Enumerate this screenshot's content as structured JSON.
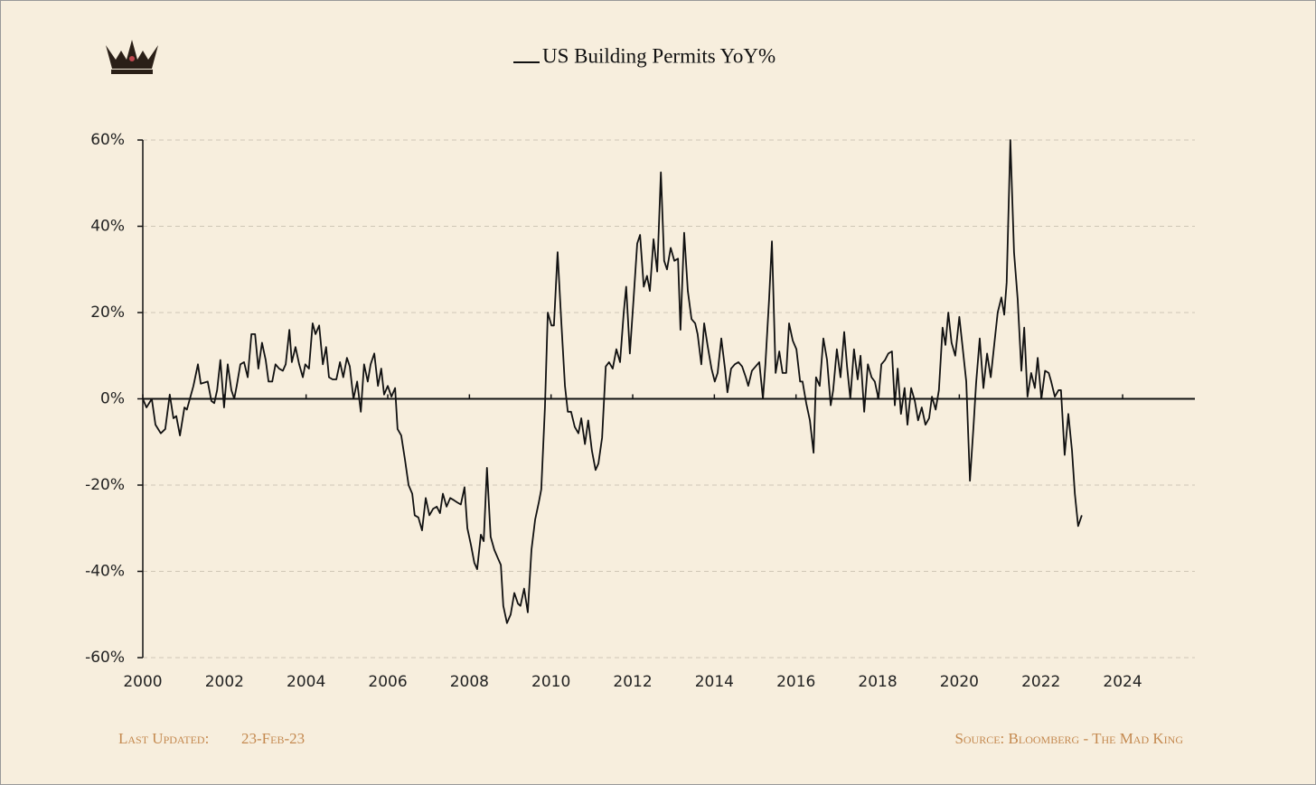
{
  "chart_data": {
    "type": "line",
    "title": "US Building Permits YoY%",
    "footer_left_label": "Last Updated:",
    "footer_left_date": "23-Feb-23",
    "footer_right": "Source: Bloomberg - The Mad King",
    "color": "#111111",
    "grid": true,
    "xlim": [
      2000,
      2025.77
    ],
    "xticks": [
      2000,
      2002,
      2004,
      2006,
      2008,
      2010,
      2012,
      2014,
      2016,
      2018,
      2020,
      2022,
      2024
    ],
    "ylim": [
      -60,
      60
    ],
    "yticks": [
      {
        "value": -60,
        "label": "-60%"
      },
      {
        "value": -40,
        "label": "-40%"
      },
      {
        "value": -20,
        "label": "-20%"
      },
      {
        "value": 0,
        "label": "0%"
      },
      {
        "value": 20,
        "label": "20%"
      },
      {
        "value": 40,
        "label": "40%"
      },
      {
        "value": 60,
        "label": "60%"
      }
    ],
    "x": [
      2000.0,
      2000.09,
      2000.22,
      2000.31,
      2000.44,
      2000.55,
      2000.66,
      2000.75,
      2000.82,
      2000.91,
      2001.02,
      2001.08,
      2001.24,
      2001.35,
      2001.42,
      2001.59,
      2001.68,
      2001.75,
      2001.82,
      2001.9,
      2001.99,
      2002.08,
      2002.17,
      2002.24,
      2002.3,
      2002.39,
      2002.48,
      2002.57,
      2002.66,
      2002.75,
      2002.83,
      2002.92,
      2003.01,
      2003.08,
      2003.17,
      2003.25,
      2003.34,
      2003.43,
      2003.5,
      2003.59,
      2003.65,
      2003.74,
      2003.83,
      2003.92,
      2003.98,
      2004.07,
      2004.16,
      2004.23,
      2004.32,
      2004.41,
      2004.49,
      2004.56,
      2004.65,
      2004.74,
      2004.83,
      2004.91,
      2005.0,
      2005.07,
      2005.16,
      2005.25,
      2005.34,
      2005.42,
      2005.51,
      2005.58,
      2005.67,
      2005.76,
      2005.84,
      2005.91,
      2006.0,
      2006.09,
      2006.18,
      2006.24,
      2006.33,
      2006.42,
      2006.51,
      2006.6,
      2006.66,
      2006.75,
      2006.84,
      2006.93,
      2007.02,
      2007.11,
      2007.2,
      2007.28,
      2007.35,
      2007.44,
      2007.53,
      2007.62,
      2007.7,
      2007.79,
      2007.88,
      2007.95,
      2008.04,
      2008.12,
      2008.19,
      2008.28,
      2008.35,
      2008.43,
      2008.52,
      2008.61,
      2008.7,
      2008.77,
      2008.83,
      2008.92,
      2009.01,
      2009.1,
      2009.19,
      2009.25,
      2009.34,
      2009.43,
      2009.52,
      2009.61,
      2009.7,
      2009.76,
      2009.85,
      2009.92,
      2010.01,
      2010.07,
      2010.16,
      2010.25,
      2010.34,
      2010.41,
      2010.49,
      2010.58,
      2010.67,
      2010.74,
      2010.83,
      2010.91,
      2011.0,
      2011.09,
      2011.16,
      2011.25,
      2011.34,
      2011.42,
      2011.51,
      2011.6,
      2011.69,
      2011.78,
      2011.84,
      2011.93,
      2012.02,
      2012.11,
      2012.18,
      2012.27,
      2012.35,
      2012.42,
      2012.51,
      2012.6,
      2012.69,
      2012.77,
      2012.84,
      2012.93,
      2013.02,
      2013.11,
      2013.17,
      2013.26,
      2013.35,
      2013.44,
      2013.53,
      2013.59,
      2013.68,
      2013.75,
      2013.84,
      2013.93,
      2014.01,
      2014.08,
      2014.17,
      2014.26,
      2014.32,
      2014.41,
      2014.5,
      2014.59,
      2014.68,
      2014.77,
      2014.83,
      2014.92,
      2015.01,
      2015.1,
      2015.19,
      2015.25,
      2015.34,
      2015.41,
      2015.5,
      2015.59,
      2015.67,
      2015.76,
      2015.83,
      2015.92,
      2016.01,
      2016.1,
      2016.16,
      2016.25,
      2016.34,
      2016.43,
      2016.49,
      2016.58,
      2016.67,
      2016.76,
      2016.85,
      2016.91,
      2017.0,
      2017.09,
      2017.18,
      2017.25,
      2017.33,
      2017.42,
      2017.51,
      2017.58,
      2017.67,
      2017.76,
      2017.85,
      2017.93,
      2018.02,
      2018.09,
      2018.18,
      2018.26,
      2018.35,
      2018.42,
      2018.49,
      2018.57,
      2018.66,
      2018.73,
      2018.82,
      2018.91,
      2018.99,
      2019.08,
      2019.17,
      2019.26,
      2019.33,
      2019.42,
      2019.5,
      2019.59,
      2019.66,
      2019.73,
      2019.81,
      2019.9,
      2020.0,
      2020.08,
      2020.17,
      2020.26,
      2020.35,
      2020.41,
      2020.5,
      2020.59,
      2020.68,
      2020.77,
      2020.86,
      2020.94,
      2021.03,
      2021.1,
      2021.16,
      2021.25,
      2021.34,
      2021.43,
      2021.52,
      2021.59,
      2021.67,
      2021.76,
      2021.85,
      2021.92,
      2022.01,
      2022.1,
      2022.19,
      2022.25,
      2022.34,
      2022.43,
      2022.49,
      2022.58,
      2022.67,
      2022.76,
      2022.83,
      2022.91,
      2023.0
    ],
    "values": [
      0,
      -2,
      0,
      -6,
      -8,
      -7,
      1,
      -4.5,
      -4,
      -8.5,
      -2,
      -2.5,
      3,
      8,
      3.5,
      4,
      -0.5,
      -1,
      2,
      9,
      -2,
      8,
      2,
      0,
      3,
      8,
      8.5,
      5,
      15,
      15,
      7,
      13,
      9,
      4,
      4,
      8,
      7,
      6.5,
      8,
      16,
      8.5,
      12,
      8,
      5,
      8,
      7,
      17.5,
      15,
      17,
      8,
      12,
      5,
      4.5,
      4.5,
      8.5,
      5,
      9.5,
      7.5,
      0,
      4,
      -3,
      8,
      4,
      8,
      10.5,
      3,
      7,
      1,
      3,
      0.5,
      2.5,
      -7,
      -8.5,
      -14,
      -20,
      -22,
      -27,
      -27.5,
      -30.5,
      -23,
      -27,
      -25.5,
      -25,
      -26.5,
      -22,
      -25,
      -23,
      -23.5,
      -24,
      -24.5,
      -20.5,
      -30,
      -34,
      -38,
      -39.5,
      -31.5,
      -33,
      -16,
      -32,
      -35,
      -37,
      -38.5,
      -48,
      -52,
      -50,
      -45,
      -47.5,
      -48,
      -44,
      -49.5,
      -35,
      -28,
      -24,
      -21,
      -2,
      20,
      17,
      17,
      34,
      18,
      3,
      -3,
      -3,
      -6.5,
      -8,
      -4.5,
      -10.5,
      -5,
      -12,
      -16.5,
      -15,
      -9,
      7.5,
      8.5,
      7,
      11.5,
      8.5,
      20,
      26,
      10.5,
      23,
      36,
      38,
      26,
      28.5,
      25,
      37,
      29.5,
      52.5,
      32,
      30,
      35,
      32,
      32.5,
      16,
      38.5,
      25,
      18.5,
      17.5,
      15,
      8,
      17.5,
      12,
      7,
      4,
      6,
      14,
      7,
      1.5,
      7,
      8,
      8.5,
      7.5,
      5,
      3,
      6.5,
      7.5,
      8.5,
      0,
      8,
      23,
      36.5,
      6,
      11,
      6,
      6,
      17.5,
      13.5,
      11.5,
      4,
      4,
      -1,
      -5,
      -12.5,
      5,
      3,
      14,
      9,
      -1.5,
      2,
      11.5,
      5,
      15.5,
      7.5,
      0,
      11.5,
      4.5,
      10,
      -3,
      8,
      5,
      4,
      0,
      8,
      9,
      10.5,
      11,
      -1.5,
      7,
      -3.5,
      2.5,
      -6,
      2.5,
      -0.5,
      -5,
      -2,
      -6,
      -4.5,
      0.5,
      -2.5,
      2,
      16.5,
      12.5,
      20,
      13,
      10,
      19,
      12,
      4,
      -19,
      -6,
      3.5,
      14,
      2.5,
      10.5,
      5,
      13,
      20,
      23.5,
      19.5,
      27,
      60,
      34,
      23,
      6.5,
      16.5,
      0.5,
      6,
      2.5,
      9.5,
      0,
      6.5,
      6,
      4,
      0.5,
      2,
      2,
      -13,
      -3.5,
      -12,
      -22,
      -29.5,
      -27
    ]
  }
}
